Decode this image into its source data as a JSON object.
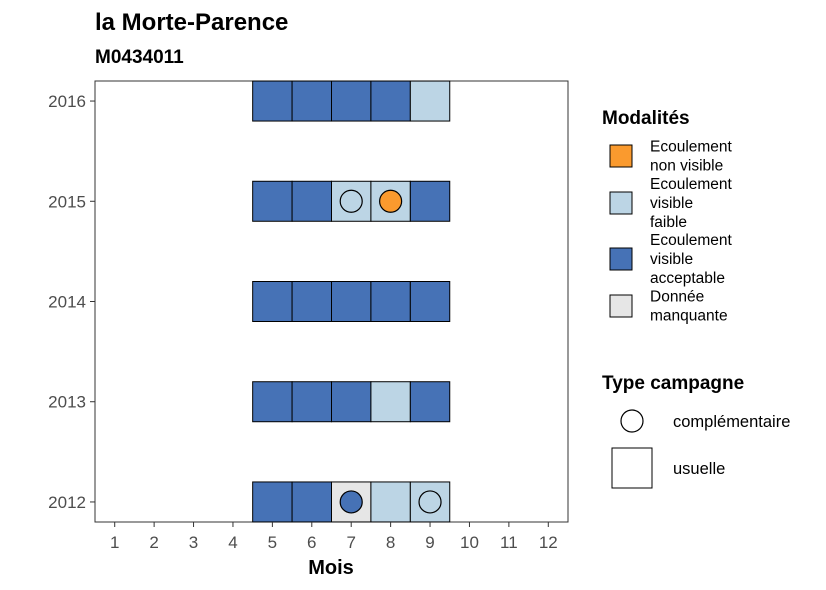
{
  "chart_data": {
    "type": "heatmap",
    "title": "la Morte-Parence",
    "subtitle": "M0434011",
    "xlabel": "Mois",
    "ylabel": "",
    "x_ticks": [
      1,
      2,
      3,
      4,
      5,
      6,
      7,
      8,
      9,
      10,
      11,
      12
    ],
    "y_ticks": [
      2012,
      2013,
      2014,
      2015,
      2016
    ],
    "xlim": [
      0.5,
      12.5
    ],
    "ylim": [
      2011.8,
      2016.2
    ],
    "grid": false,
    "legend_position": "right",
    "colors": {
      "non_visible": "#fa9a2e",
      "visible_faible": "#bcd5e5",
      "visible_acceptable": "#4672b6",
      "manquante": "#e6e6e6"
    },
    "legend_modalites": {
      "title": "Modalités",
      "entries": [
        {
          "key": "non_visible",
          "lines": [
            "Ecoulement",
            "non visible"
          ]
        },
        {
          "key": "visible_faible",
          "lines": [
            "Ecoulement",
            "visible",
            "faible"
          ]
        },
        {
          "key": "visible_acceptable",
          "lines": [
            "Ecoulement",
            "visible",
            "acceptable"
          ]
        },
        {
          "key": "manquante",
          "lines": [
            "Donnée",
            "manquante"
          ]
        }
      ]
    },
    "legend_campagne": {
      "title": "Type campagne",
      "entries": [
        {
          "key": "complementaire",
          "label": "complémentaire",
          "shape": "circle"
        },
        {
          "key": "usuelle",
          "label": "usuelle",
          "shape": "square"
        }
      ]
    },
    "points": [
      {
        "year": 2012,
        "month": 5,
        "modalite": "visible_acceptable",
        "type": "usuelle"
      },
      {
        "year": 2012,
        "month": 6,
        "modalite": "visible_acceptable",
        "type": "usuelle"
      },
      {
        "year": 2012,
        "month": 7,
        "modalite": "manquante",
        "type": "usuelle"
      },
      {
        "year": 2012,
        "month": 7,
        "modalite": "visible_acceptable",
        "type": "complementaire"
      },
      {
        "year": 2012,
        "month": 8,
        "modalite": "visible_faible",
        "type": "usuelle"
      },
      {
        "year": 2012,
        "month": 9,
        "modalite": "visible_faible",
        "type": "usuelle"
      },
      {
        "year": 2012,
        "month": 9,
        "modalite": "visible_faible",
        "type": "complementaire"
      },
      {
        "year": 2013,
        "month": 5,
        "modalite": "visible_acceptable",
        "type": "usuelle"
      },
      {
        "year": 2013,
        "month": 6,
        "modalite": "visible_acceptable",
        "type": "usuelle"
      },
      {
        "year": 2013,
        "month": 7,
        "modalite": "visible_acceptable",
        "type": "usuelle"
      },
      {
        "year": 2013,
        "month": 8,
        "modalite": "visible_faible",
        "type": "usuelle"
      },
      {
        "year": 2013,
        "month": 9,
        "modalite": "visible_acceptable",
        "type": "usuelle"
      },
      {
        "year": 2014,
        "month": 5,
        "modalite": "visible_acceptable",
        "type": "usuelle"
      },
      {
        "year": 2014,
        "month": 6,
        "modalite": "visible_acceptable",
        "type": "usuelle"
      },
      {
        "year": 2014,
        "month": 7,
        "modalite": "visible_acceptable",
        "type": "usuelle"
      },
      {
        "year": 2014,
        "month": 8,
        "modalite": "visible_acceptable",
        "type": "usuelle"
      },
      {
        "year": 2014,
        "month": 9,
        "modalite": "visible_acceptable",
        "type": "usuelle"
      },
      {
        "year": 2015,
        "month": 5,
        "modalite": "visible_acceptable",
        "type": "usuelle"
      },
      {
        "year": 2015,
        "month": 6,
        "modalite": "visible_acceptable",
        "type": "usuelle"
      },
      {
        "year": 2015,
        "month": 7,
        "modalite": "visible_faible",
        "type": "usuelle"
      },
      {
        "year": 2015,
        "month": 7,
        "modalite": "visible_faible",
        "type": "complementaire"
      },
      {
        "year": 2015,
        "month": 8,
        "modalite": "visible_faible",
        "type": "usuelle"
      },
      {
        "year": 2015,
        "month": 8,
        "modalite": "non_visible",
        "type": "complementaire"
      },
      {
        "year": 2015,
        "month": 9,
        "modalite": "visible_acceptable",
        "type": "usuelle"
      },
      {
        "year": 2016,
        "month": 5,
        "modalite": "visible_acceptable",
        "type": "usuelle"
      },
      {
        "year": 2016,
        "month": 6,
        "modalite": "visible_acceptable",
        "type": "usuelle"
      },
      {
        "year": 2016,
        "month": 7,
        "modalite": "visible_acceptable",
        "type": "usuelle"
      },
      {
        "year": 2016,
        "month": 8,
        "modalite": "visible_acceptable",
        "type": "usuelle"
      },
      {
        "year": 2016,
        "month": 9,
        "modalite": "visible_faible",
        "type": "usuelle"
      }
    ]
  }
}
